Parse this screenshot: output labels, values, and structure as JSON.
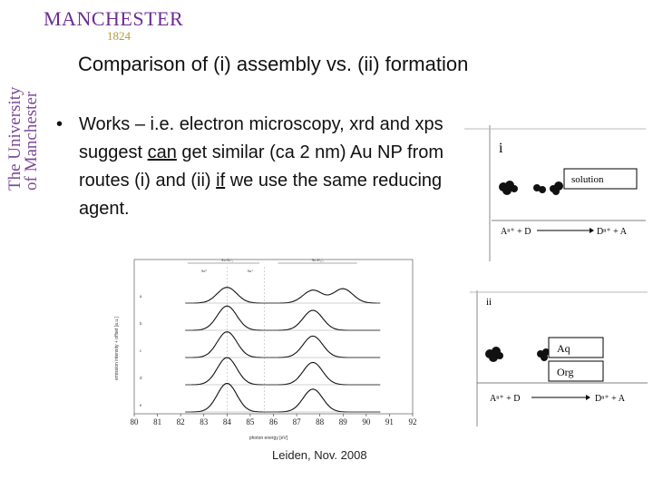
{
  "sidebar": {
    "line1": "The University",
    "line2": "of Manchester"
  },
  "logo": {
    "word": "MANCHESTER",
    "year": "1824"
  },
  "slide": {
    "title": "Comparison of (i) assembly vs. (ii) formation",
    "bullet_symbol": "•",
    "bullet_parts": [
      "Works – i.e. electron microscopy, xrd and xps suggest ",
      "can",
      " get similar (ca 2 nm) Au NP from routes (i) and (ii) ",
      "if",
      " we use the same reducing agent."
    ],
    "footer": "Leiden, Nov. 2008"
  },
  "diagram_i": {
    "label": "i",
    "box": "solution",
    "reaction_left": "Aⁿ⁺ + D",
    "reaction_right": "Dⁿ⁺ + A"
  },
  "diagram_ii": {
    "label": "ii",
    "box_top": "Aq",
    "box_bottom": "Org",
    "reaction_left": "Aⁿ⁺ + D",
    "reaction_right": "Dⁿ⁺ + A"
  },
  "chart_data": {
    "type": "line",
    "xlabel": "photon energy [eV]",
    "ylabel": "emission intensity + offset [a.u.]",
    "x_ticks": [
      "80",
      "81",
      "82",
      "83",
      "84",
      "85",
      "86",
      "87",
      "88",
      "89",
      "90",
      "91",
      "92"
    ],
    "xlim": [
      80,
      92
    ],
    "series": [
      {
        "name": "a",
        "peaks": [
          [
            84.0,
            0.55
          ],
          [
            87.7,
            0.45
          ],
          [
            89.0,
            0.5
          ]
        ]
      },
      {
        "name": "b",
        "peaks": [
          [
            84.0,
            0.85
          ],
          [
            87.7,
            0.7
          ]
        ]
      },
      {
        "name": "c",
        "peaks": [
          [
            84.0,
            0.9
          ],
          [
            87.7,
            0.75
          ]
        ]
      },
      {
        "name": "d",
        "peaks": [
          [
            84.0,
            0.95
          ],
          [
            87.7,
            0.78
          ]
        ]
      },
      {
        "name": "e",
        "peaks": [
          [
            84.0,
            1.0
          ],
          [
            87.7,
            0.8
          ]
        ]
      }
    ],
    "annotations": [
      "Au 4f₇/₂",
      "Au 4f₅/₂",
      "Au⁰",
      "Au⁺"
    ]
  }
}
